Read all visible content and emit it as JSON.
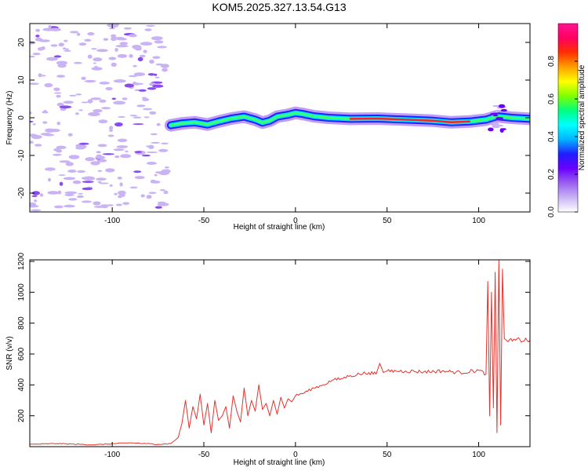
{
  "title": "KOM5.2025.327.13.54.G13",
  "chart_data": [
    {
      "type": "heatmap",
      "name": "spectrogram",
      "xlabel": "Height of straight line (km)",
      "ylabel": "Frequency (Hz)",
      "xlim": [
        -145,
        128
      ],
      "ylim": [
        -25,
        25
      ],
      "xticks": [
        -100,
        -50,
        0,
        50,
        100
      ],
      "yticks": [
        -20,
        -10,
        0,
        10,
        20
      ],
      "noise_region_x": [
        -145,
        -70
      ],
      "ridge": [
        {
          "x": -68,
          "y": -2.0
        },
        {
          "x": -62,
          "y": -1.5
        },
        {
          "x": -55,
          "y": -1.2
        },
        {
          "x": -48,
          "y": -1.8
        },
        {
          "x": -42,
          "y": -1.0
        },
        {
          "x": -35,
          "y": -0.2
        },
        {
          "x": -28,
          "y": 0.3
        },
        {
          "x": -22,
          "y": -0.5
        },
        {
          "x": -18,
          "y": -1.3
        },
        {
          "x": -14,
          "y": -0.8
        },
        {
          "x": -10,
          "y": 0.3
        },
        {
          "x": -4,
          "y": 0.8
        },
        {
          "x": 0,
          "y": 1.3
        },
        {
          "x": 4,
          "y": 1.0
        },
        {
          "x": 10,
          "y": 0.4
        },
        {
          "x": 18,
          "y": 0.0
        },
        {
          "x": 30,
          "y": -0.3
        },
        {
          "x": 45,
          "y": -0.2
        },
        {
          "x": 60,
          "y": -0.5
        },
        {
          "x": 75,
          "y": -0.8
        },
        {
          "x": 85,
          "y": -1.2
        },
        {
          "x": 95,
          "y": -1.0
        },
        {
          "x": 104,
          "y": -0.5
        },
        {
          "x": 110,
          "y": 0.4
        },
        {
          "x": 118,
          "y": 0.0
        },
        {
          "x": 128,
          "y": -0.3
        }
      ],
      "colorbar": {
        "label": "Normalized spectral amplitude",
        "range": [
          0,
          1
        ],
        "ticks": [
          0.0,
          0.2,
          0.4,
          0.6,
          0.8
        ],
        "tick_labels": [
          "0.0",
          "0.2",
          "0.4",
          "0.6",
          "0.8"
        ],
        "colors": [
          "#ffffff",
          "#c9b3f5",
          "#9a60f0",
          "#6a00ff",
          "#1f1fff",
          "#00b4ff",
          "#00ffff",
          "#00ff80",
          "#7fff00",
          "#ffff00",
          "#ffa000",
          "#ff3000",
          "#ff0060",
          "#ff1493"
        ]
      }
    },
    {
      "type": "line",
      "name": "snr",
      "xlabel": "Height of straight line (km)",
      "ylabel": "SNR (v/v)",
      "xlim": [
        -145,
        128
      ],
      "ylim": [
        0,
        1210
      ],
      "xticks": [
        -100,
        -50,
        0,
        50,
        100
      ],
      "yticks": [
        200,
        400,
        600,
        800,
        1000,
        1200
      ],
      "color": "#e8312b",
      "x": [
        -145,
        -130,
        -110,
        -90,
        -75,
        -68,
        -64,
        -62,
        -60,
        -58,
        -56,
        -54,
        -52,
        -50,
        -48,
        -46,
        -44,
        -42,
        -40,
        -38,
        -36,
        -34,
        -32,
        -30,
        -28,
        -26,
        -24,
        -22,
        -20,
        -18,
        -16,
        -14,
        -12,
        -10,
        -8,
        -6,
        -4,
        -2,
        0,
        5,
        10,
        15,
        20,
        25,
        30,
        35,
        40,
        44,
        46,
        48,
        50,
        60,
        70,
        80,
        90,
        100,
        104,
        105,
        106,
        107,
        108,
        109,
        110,
        111,
        112,
        113,
        114,
        116,
        120,
        128
      ],
      "y": [
        15,
        20,
        12,
        25,
        15,
        20,
        60,
        150,
        300,
        120,
        260,
        180,
        340,
        140,
        280,
        90,
        300,
        170,
        200,
        260,
        120,
        330,
        230,
        160,
        380,
        200,
        300,
        230,
        400,
        240,
        280,
        200,
        300,
        210,
        320,
        250,
        310,
        290,
        330,
        350,
        380,
        400,
        430,
        440,
        460,
        470,
        480,
        470,
        540,
        480,
        490,
        490,
        485,
        490,
        480,
        495,
        470,
        1070,
        200,
        1000,
        250,
        1130,
        90,
        1210,
        140,
        1150,
        700,
        680,
        690,
        690
      ]
    }
  ]
}
